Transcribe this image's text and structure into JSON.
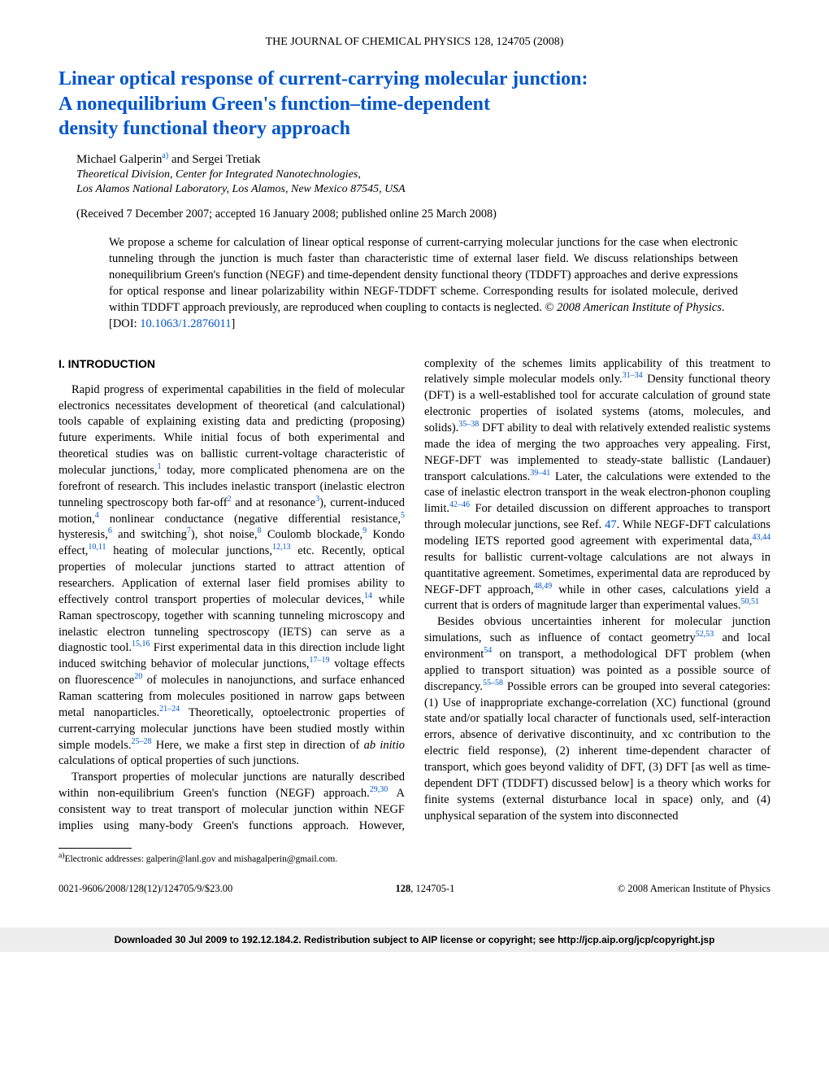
{
  "header": {
    "journal_line": "THE JOURNAL OF CHEMICAL PHYSICS 128, 124705 (2008)"
  },
  "title": {
    "line1": "Linear optical response of current-carrying molecular junction:",
    "line2": "A nonequilibrium Green's function–time-dependent",
    "line3": "density functional theory approach"
  },
  "authors": {
    "text": "Michael Galperin",
    "sup": "a)",
    "rest": " and Sergei Tretiak"
  },
  "affiliation": {
    "line1": "Theoretical Division, Center for Integrated Nanotechnologies,",
    "line2": "Los Alamos National Laboratory, Los Alamos, New Mexico 87545, USA"
  },
  "dates": "(Received 7 December 2007; accepted 16 January 2008; published online 25 March 2008)",
  "abstract": {
    "text": "We propose a scheme for calculation of linear optical response of current-carrying molecular junctions for the case when electronic tunneling through the junction is much faster than characteristic time of external laser field. We discuss relationships between nonequilibrium Green's function (NEGF) and time-dependent density functional theory (TDDFT) approaches and derive expressions for optical response and linear polarizability within NEGF-TDDFT scheme. Corresponding results for isolated molecule, derived within TDDFT approach previously, are reproduced when coupling to contacts is neglected. © ",
    "copyright_italic": "2008 American Institute of Physics",
    "doi_prefix": "[DOI: ",
    "doi": "10.1063/1.2876011",
    "doi_suffix": "]"
  },
  "section1_heading": "I. INTRODUCTION",
  "body": {
    "p1a": "Rapid progress of experimental capabilities in the field of molecular electronics necessitates development of theoretical (and calculational) tools capable of explaining existing data and predicting (proposing) future experiments. While initial focus of both experimental and theoretical studies was on ballistic current-voltage characteristic of molecular junctions,",
    "r1": "1",
    "p1b": " today, more complicated phenomena are on the forefront of research. This includes inelastic transport (inelastic electron tunneling spectroscopy both far-off",
    "r2": "2",
    "p1c": " and at resonance",
    "r3": "3",
    "p1d": "), current-induced motion,",
    "r4": "4",
    "p1e": " nonlinear conductance (negative differential resistance,",
    "r5": "5",
    "p1f": " hysteresis,",
    "r6": "6",
    "p1g": " and switching",
    "r7": "7",
    "p1h": "), shot noise,",
    "r8": "8",
    "p1i": " Coulomb blockade,",
    "r9": "9",
    "p1j": " Kondo effect,",
    "r10": "10,11",
    "p1k": " heating of molecular junctions,",
    "r12": "12,13",
    "p1l": " etc. Recently, optical properties of molecular junctions started to attract attention of researchers. Application of external laser field promises ability to effectively control transport properties of molecular devices,",
    "r14": "14",
    "p1m": " while Raman spectroscopy, together with scanning tunneling microscopy and inelastic electron tunneling spectroscopy (IETS) can serve as a diagnostic tool.",
    "r15": "15,16",
    "p1n": " First experimental data in this direction include light induced switching behavior of molecular junctions,",
    "r17": "17–19",
    "p1o": " voltage effects on fluorescence",
    "r20": "20",
    "p1p": " of molecules in nanojunctions, and surface enhanced Raman scattering from molecules positioned in narrow gaps between metal nanoparticles.",
    "r21": "21–24",
    "p1q": " Theoretically, optoelectronic properties of current-carrying molecular junctions have been studied mostly within simple models.",
    "r25": "25–28",
    "p1r": " Here, we make a first step in direction of ",
    "p1r_italic": "ab initio",
    "p1s": " calculations of optical properties of such junctions.",
    "p2a": "Transport properties of molecular junctions are naturally described within non-equilibrium Green's function (NEGF) approach.",
    "r29": "29,30",
    "p2b": " A consistent way to treat transport of molecular junction within NEGF implies using many-body Green's ",
    "p2c": "functions approach. However, complexity of the schemes limits applicability of this treatment to relatively simple molecular models only.",
    "r31": "31–34",
    "p2d": " Density functional theory (DFT) is a well-established tool for accurate calculation of ground state electronic properties of isolated systems (atoms, molecules, and solids).",
    "r35": "35–38",
    "p2e": " DFT ability to deal with relatively extended realistic systems made the idea of merging the two approaches very appealing. First, NEGF-DFT was implemented to steady-state ballistic (Landauer) transport calculations.",
    "r39": "39–41",
    "p2f": " Later, the calculations were extended to the case of inelastic electron transport in the weak electron-phonon coupling limit.",
    "r42": "42–46",
    "p2g": " For detailed discussion on different approaches to transport through molecular junctions, see Ref. ",
    "r47": "47",
    "p2h": ". While NEGF-DFT calculations modeling IETS reported good agreement with experimental data,",
    "r43": "43,44",
    "p2i": " results for ballistic current-voltage calculations are not always in quantitative agreement. Sometimes, experimental data are reproduced by NEGF-DFT approach,",
    "r48": "48,49",
    "p2j": " while in other cases, calculations yield a current that is orders of magnitude larger than experimental values.",
    "r50": "50,51",
    "p3a": "Besides obvious uncertainties inherent for molecular junction simulations, such as influence of contact geometry",
    "r52": "52,53",
    "p3b": " and local environment",
    "r54": "54",
    "p3c": " on transport, a methodological DFT problem (when applied to transport situation) was pointed as a possible source of discrepancy.",
    "r55": "55–58",
    "p3d": " Possible errors can be grouped into several categories: (1) Use of inappropriate exchange-correlation (XC) functional (ground state and/or spatially local character of functionals used, self-interaction errors, absence of derivative discontinuity, and xc contribution to the electric field response), (2) inherent time-dependent character of transport, which goes beyond validity of DFT, (3) DFT [as well as time-dependent DFT (TDDFT) discussed below] is a theory which works for finite systems (external disturbance local in space) only, and (4) unphysical separation of the system into disconnected"
  },
  "footnote": {
    "marker": "a)",
    "text": "Electronic addresses: galperin@lanl.gov and mishagalperin@gmail.com."
  },
  "footer": {
    "left": "0021-9606/2008/128(12)/124705/9/$23.00",
    "center_bold": "128",
    "center_rest": ", 124705-1",
    "right": "© 2008 American Institute of Physics"
  },
  "download_bar": "Downloaded 30 Jul 2009 to 192.12.184.2. Redistribution subject to AIP license or copyright; see http://jcp.aip.org/jcp/copyright.jsp",
  "colors": {
    "link": "#0055cc",
    "background": "#ffffff",
    "text": "#000000",
    "bar_bg": "#ededed"
  }
}
